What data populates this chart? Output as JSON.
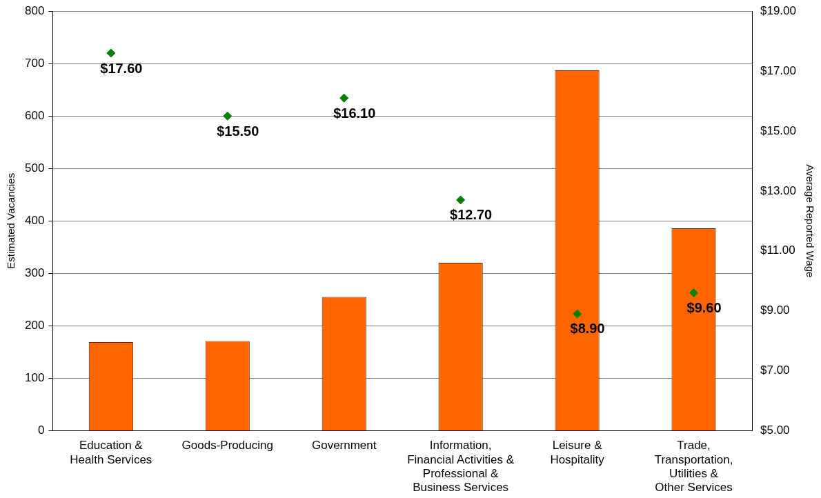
{
  "chart_data": {
    "type": "bar",
    "ylabel": "Estimated Vacancies",
    "y2label": "Average Reported Wage",
    "categories": [
      "Education & Health Services",
      "Goods-Producing",
      "Government",
      "Information, Financial Activities & Professional & Business Services",
      "Leisure & Hospitality",
      "Trade, Transportation, Utilities & Other Services"
    ],
    "series": [
      {
        "color": "#ff6600",
        "values": [
          169,
          171,
          255,
          320,
          687,
          386
        ]
      },
      {
        "type": "scatter",
        "axis": "y2",
        "color": "#008000",
        "marker": "diamond",
        "values": [
          17.6,
          15.5,
          16.1,
          12.7,
          8.9,
          9.6
        ],
        "value_labels": [
          "$17.60",
          "$15.50",
          "$16.10",
          "$12.70",
          "$8.90",
          "$9.60"
        ]
      }
    ],
    "ylim": [
      0,
      800
    ],
    "yticks": [
      0,
      100,
      200,
      300,
      400,
      500,
      600,
      700,
      800
    ],
    "y2lim": [
      5,
      19
    ],
    "y2ticks": [
      {
        "value": 5,
        "label": "$5.00"
      },
      {
        "value": 7,
        "label": "$7.00"
      },
      {
        "value": 9,
        "label": "$9.00"
      },
      {
        "value": 11,
        "label": "$11.00"
      },
      {
        "value": 13,
        "label": "$13.00"
      },
      {
        "value": 15,
        "label": "$15.00"
      },
      {
        "value": 17,
        "label": "$17.00"
      },
      {
        "value": 19,
        "label": "$19.00"
      }
    ],
    "grid": "y",
    "legend": false
  }
}
